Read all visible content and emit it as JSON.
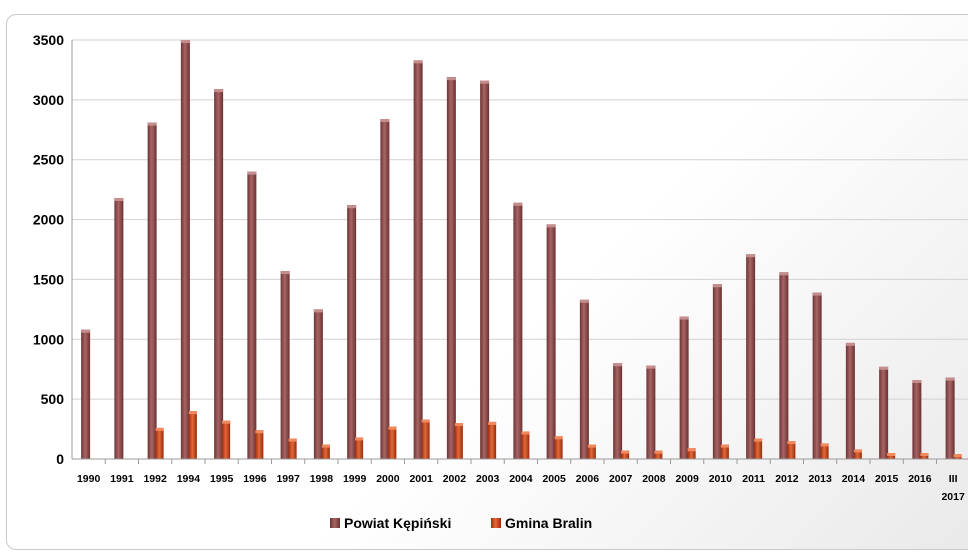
{
  "chart_data": {
    "type": "bar",
    "categories": [
      "1990",
      "1991",
      "1992",
      "1994",
      "1995",
      "1996",
      "1997",
      "1998",
      "1999",
      "2000",
      "2001",
      "2002",
      "2003",
      "2004",
      "2005",
      "2006",
      "2007",
      "2008",
      "2009",
      "2010",
      "2011",
      "2012",
      "2013",
      "2014",
      "2015",
      "2016",
      "III 2017"
    ],
    "series": [
      {
        "name": "Powiat Kępiński",
        "color": "#8b4a4a",
        "values": [
          1080,
          2180,
          2810,
          3500,
          3090,
          2400,
          1570,
          1250,
          2120,
          2840,
          3330,
          3190,
          3160,
          2140,
          1960,
          1330,
          800,
          780,
          1190,
          1460,
          1710,
          1560,
          1390,
          970,
          770,
          660,
          680
        ]
      },
      {
        "name": "Gmina Bralin",
        "color": "#c0401a",
        "values": [
          0,
          0,
          260,
          400,
          320,
          240,
          170,
          120,
          180,
          270,
          330,
          300,
          310,
          230,
          190,
          120,
          70,
          70,
          90,
          120,
          170,
          150,
          130,
          80,
          50,
          50,
          40
        ]
      }
    ],
    "ylim": [
      0,
      3500
    ],
    "yticks": [
      0,
      500,
      1000,
      1500,
      2000,
      2500,
      3000,
      3500
    ],
    "grid": true,
    "legend_position": "bottom"
  }
}
